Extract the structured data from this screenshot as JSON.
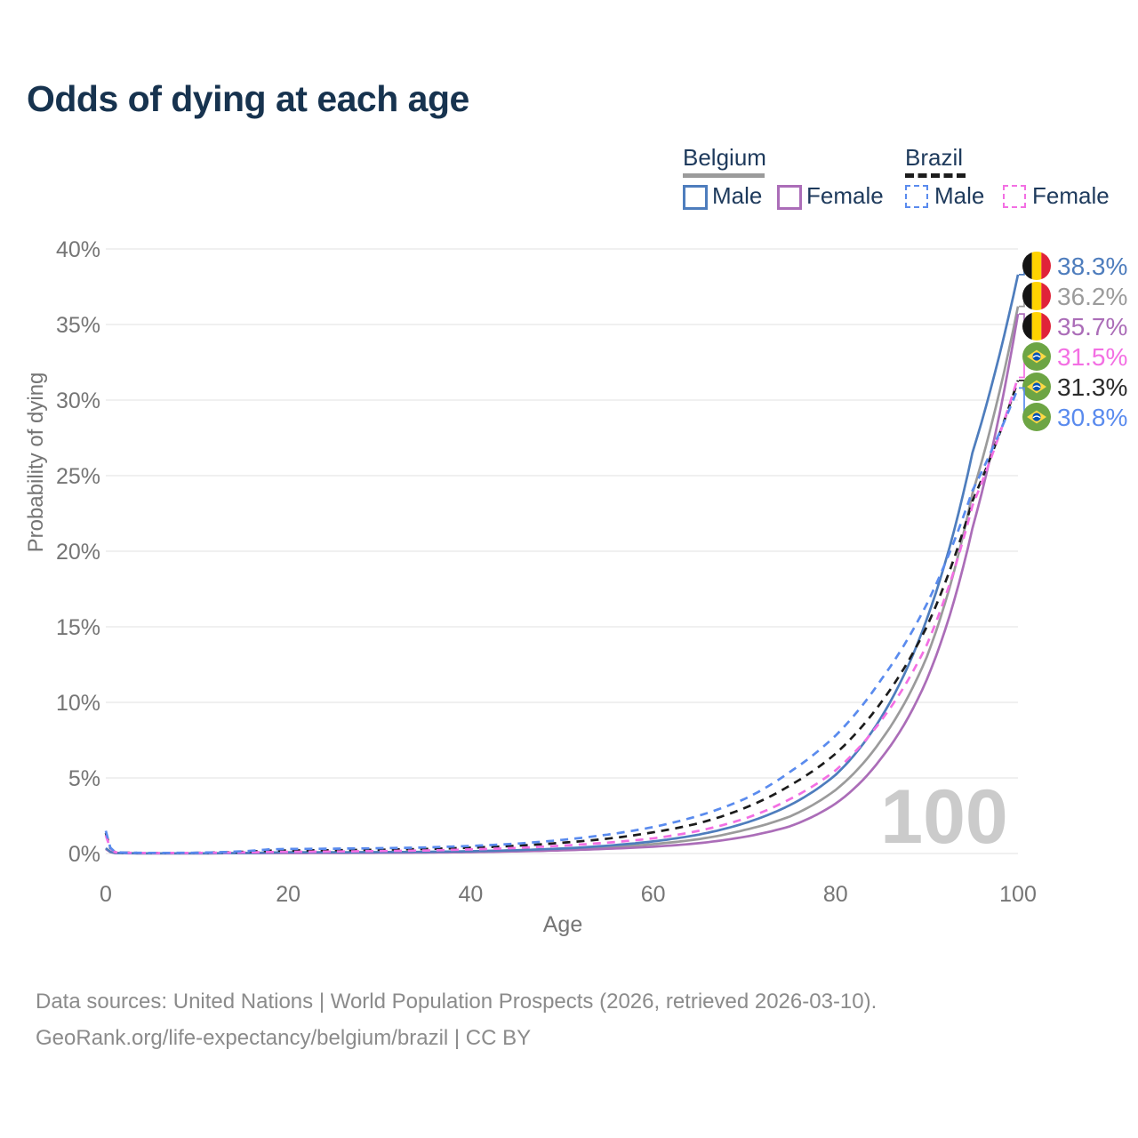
{
  "title": "Odds of dying at each age",
  "watermark": "100",
  "legend": {
    "groups": [
      {
        "label": "Belgium",
        "line_style": "solid",
        "underline_color": "#9b9b9b",
        "items": [
          {
            "label": "Male",
            "color": "#4e7dbd"
          },
          {
            "label": "Female",
            "color": "#ab6db8"
          }
        ]
      },
      {
        "label": "Brazil",
        "line_style": "dashed",
        "underline_color": "#1c1c1c",
        "items": [
          {
            "label": "Male",
            "color": "#5a8bee"
          },
          {
            "label": "Female",
            "color": "#f36fe3"
          }
        ]
      }
    ]
  },
  "chart_data": {
    "type": "line",
    "title": "Odds of dying at each age",
    "xlabel": "Age",
    "ylabel": "Probability of dying",
    "xlim": [
      0,
      100
    ],
    "ylim": [
      0,
      40
    ],
    "grid": true,
    "x_ticks": [
      0,
      20,
      40,
      60,
      80,
      100
    ],
    "y_ticks": [
      {
        "value": 0,
        "label": "0%"
      },
      {
        "value": 5,
        "label": "5%"
      },
      {
        "value": 10,
        "label": "10%"
      },
      {
        "value": 15,
        "label": "15%"
      },
      {
        "value": 20,
        "label": "20%"
      },
      {
        "value": 25,
        "label": "25%"
      },
      {
        "value": 30,
        "label": "30%"
      },
      {
        "value": 35,
        "label": "35%"
      },
      {
        "value": 40,
        "label": "40%"
      }
    ],
    "ages": [
      0,
      1,
      2,
      5,
      10,
      15,
      18,
      20,
      25,
      30,
      35,
      40,
      45,
      50,
      55,
      60,
      65,
      70,
      75,
      80,
      85,
      90,
      95,
      100
    ],
    "series": [
      {
        "name": "Belgium Both sexes",
        "country": "Belgium",
        "sex": "both",
        "color": "#9b9b9b",
        "dash": false,
        "values": [
          0.32,
          0.035,
          0.02,
          0.01,
          0.01,
          0.025,
          0.045,
          0.055,
          0.055,
          0.065,
          0.085,
          0.12,
          0.18,
          0.27,
          0.41,
          0.62,
          0.95,
          1.55,
          2.45,
          4.2,
          7.5,
          13.0,
          23.8,
          36.2
        ]
      },
      {
        "name": "Belgium Female",
        "country": "Belgium",
        "sex": "female",
        "color": "#ab6db8",
        "dash": false,
        "values": [
          0.3,
          0.03,
          0.015,
          0.01,
          0.01,
          0.02,
          0.03,
          0.03,
          0.035,
          0.045,
          0.06,
          0.09,
          0.14,
          0.21,
          0.31,
          0.45,
          0.68,
          1.1,
          1.8,
          3.3,
          6.3,
          11.5,
          21.5,
          35.7
        ]
      },
      {
        "name": "Belgium Male",
        "country": "Belgium",
        "sex": "male",
        "color": "#4e7dbd",
        "dash": false,
        "values": [
          0.35,
          0.04,
          0.02,
          0.01,
          0.01,
          0.03,
          0.06,
          0.08,
          0.08,
          0.09,
          0.11,
          0.15,
          0.22,
          0.33,
          0.52,
          0.8,
          1.25,
          2.0,
          3.2,
          5.2,
          9.0,
          15.5,
          26.5,
          38.3
        ]
      },
      {
        "name": "Brazil Both sexes",
        "country": "Brazil",
        "sex": "both",
        "color": "#1c1c1c",
        "dash": true,
        "values": [
          1.35,
          0.095,
          0.055,
          0.035,
          0.045,
          0.11,
          0.19,
          0.2,
          0.22,
          0.25,
          0.3,
          0.38,
          0.51,
          0.71,
          0.98,
          1.4,
          2.0,
          3.0,
          4.5,
          6.6,
          10.0,
          15.0,
          23.3,
          31.3
        ]
      },
      {
        "name": "Brazil Female",
        "country": "Brazil",
        "sex": "female",
        "color": "#f36fe3",
        "dash": true,
        "values": [
          1.2,
          0.09,
          0.05,
          0.03,
          0.04,
          0.07,
          0.1,
          0.11,
          0.13,
          0.16,
          0.2,
          0.27,
          0.37,
          0.52,
          0.72,
          1.0,
          1.5,
          2.3,
          3.6,
          5.5,
          8.8,
          13.8,
          23.0,
          31.5
        ]
      },
      {
        "name": "Brazil Male",
        "country": "Brazil",
        "sex": "male",
        "color": "#5a8bee",
        "dash": true,
        "values": [
          1.5,
          0.1,
          0.06,
          0.04,
          0.05,
          0.15,
          0.28,
          0.3,
          0.32,
          0.35,
          0.4,
          0.5,
          0.65,
          0.9,
          1.25,
          1.75,
          2.5,
          3.6,
          5.4,
          7.8,
          11.5,
          16.5,
          24.0,
          30.8
        ]
      }
    ]
  },
  "end_labels": [
    {
      "text": "38.3%",
      "value": 38.3,
      "series": "Belgium Male",
      "flag": "belgium",
      "color": "#4e7dbd"
    },
    {
      "text": "36.2%",
      "value": 36.2,
      "series": "Belgium Both sexes",
      "flag": "belgium",
      "color": "#9b9b9b"
    },
    {
      "text": "35.7%",
      "value": 35.7,
      "series": "Belgium Female",
      "flag": "belgium",
      "color": "#ab6db8"
    },
    {
      "text": "31.5%",
      "value": 31.5,
      "series": "Brazil Female",
      "flag": "brazil",
      "color": "#f36fe3"
    },
    {
      "text": "31.3%",
      "value": 31.3,
      "series": "Brazil Both sexes",
      "flag": "brazil",
      "color": "#2b2b2b"
    },
    {
      "text": "30.8%",
      "value": 30.8,
      "series": "Brazil Male",
      "flag": "brazil",
      "color": "#5a8bee"
    }
  ],
  "source": {
    "line1": "Data sources: United Nations | World Population Prospects (2026, retrieved 2026-03-10).",
    "line2": "GeoRank.org/life-expectancy/belgium/brazil | CC BY"
  }
}
